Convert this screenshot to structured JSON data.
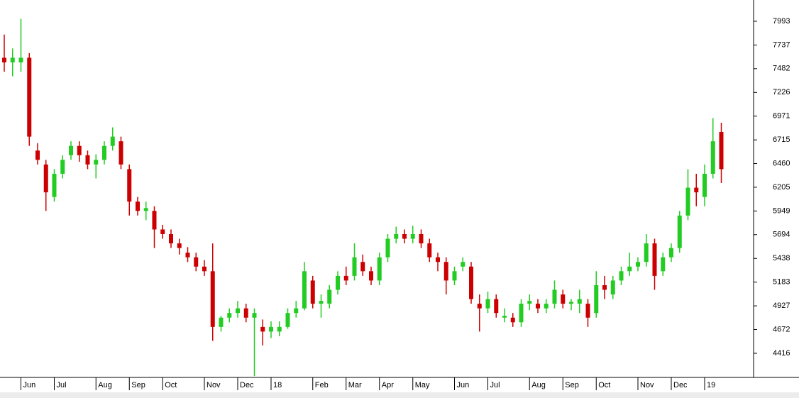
{
  "chart_data": {
    "type": "candlestick",
    "categories": [
      null,
      null,
      "Jun",
      null,
      null,
      null,
      "Jul",
      null,
      null,
      null,
      null,
      "Aug",
      null,
      null,
      null,
      "Sep",
      null,
      null,
      null,
      "Oct",
      null,
      null,
      null,
      null,
      "Nov",
      null,
      null,
      null,
      "Dec",
      null,
      null,
      null,
      "18",
      null,
      null,
      null,
      null,
      "Feb",
      null,
      null,
      null,
      "Mar",
      null,
      null,
      null,
      "Apr",
      null,
      null,
      null,
      "May",
      null,
      null,
      null,
      null,
      "Jun",
      null,
      null,
      null,
      "Jul",
      null,
      null,
      null,
      null,
      "Aug",
      null,
      null,
      null,
      "Sep",
      null,
      null,
      null,
      "Oct",
      null,
      null,
      null,
      null,
      "Nov",
      null,
      null,
      null,
      "Dec",
      null,
      null,
      null,
      "19",
      null,
      null
    ],
    "open": [
      7600,
      7550,
      7550,
      7600,
      6600,
      6450,
      6100,
      6350,
      6550,
      6650,
      6550,
      6450,
      6500,
      6650,
      6700,
      6400,
      6050,
      5950,
      5950,
      5750,
      5700,
      5600,
      5500,
      5450,
      5350,
      5300,
      4700,
      4800,
      4850,
      4900,
      4800,
      4700,
      4650,
      4650,
      4700,
      4850,
      4900,
      5200,
      4950,
      4950,
      5100,
      5250,
      5250,
      5400,
      5300,
      5200,
      5450,
      5650,
      5700,
      5650,
      5700,
      5600,
      5450,
      5400,
      5200,
      5350,
      5350,
      4950,
      4900,
      5000,
      4800,
      4800,
      4750,
      4950,
      4950,
      4900,
      4950,
      5050,
      4950,
      4950,
      4950,
      4850,
      5150,
      5050,
      5200,
      5300,
      5350,
      5400,
      5600,
      5300,
      5450,
      5550,
      5900,
      6200,
      6100,
      6350,
      6800
    ],
    "high": [
      7850,
      7700,
      8020,
      7650,
      6680,
      6500,
      6400,
      6550,
      6700,
      6700,
      6600,
      6560,
      6700,
      6850,
      6750,
      6450,
      6100,
      6050,
      6000,
      5800,
      5750,
      5650,
      5560,
      5500,
      5420,
      5600,
      4820,
      4900,
      4980,
      4950,
      4900,
      4780,
      4760,
      4760,
      4900,
      4980,
      5400,
      5250,
      5050,
      5150,
      5300,
      5350,
      5600,
      5480,
      5350,
      5500,
      5700,
      5780,
      5750,
      5790,
      5750,
      5650,
      5500,
      5450,
      5350,
      5450,
      5400,
      5050,
      5080,
      5050,
      4900,
      4850,
      5000,
      5050,
      5000,
      5000,
      5200,
      5100,
      5000,
      5100,
      5000,
      5300,
      5250,
      5250,
      5350,
      5500,
      5450,
      5700,
      5650,
      5500,
      5600,
      5950,
      6400,
      6350,
      6450,
      6950,
      6900
    ],
    "low": [
      7450,
      7400,
      7450,
      6650,
      6450,
      5950,
      6050,
      6300,
      6500,
      6480,
      6400,
      6300,
      6450,
      6600,
      6400,
      5900,
      5900,
      5850,
      5550,
      5650,
      5550,
      5480,
      5400,
      5300,
      5250,
      4550,
      4650,
      4750,
      4800,
      4750,
      4170,
      4500,
      4580,
      4600,
      4680,
      4800,
      4880,
      4900,
      4800,
      4900,
      5050,
      5150,
      5200,
      5250,
      5150,
      5150,
      5400,
      5600,
      5600,
      5600,
      5550,
      5400,
      5300,
      5050,
      5150,
      5300,
      4950,
      4650,
      4850,
      4800,
      4750,
      4700,
      4700,
      4880,
      4850,
      4850,
      4900,
      4900,
      4880,
      4850,
      4700,
      4800,
      5000,
      5000,
      5150,
      5250,
      5300,
      5350,
      5100,
      5250,
      5400,
      5500,
      5850,
      6000,
      6000,
      6300,
      6250
    ],
    "close": [
      7550,
      7600,
      7600,
      6750,
      6500,
      6150,
      6350,
      6500,
      6650,
      6550,
      6450,
      6500,
      6650,
      6750,
      6450,
      6050,
      5950,
      5980,
      5750,
      5700,
      5600,
      5550,
      5450,
      5350,
      5300,
      4700,
      4800,
      4850,
      4900,
      4800,
      4850,
      4650,
      4700,
      4700,
      4850,
      4900,
      5300,
      4950,
      4980,
      5100,
      5250,
      5200,
      5450,
      5300,
      5200,
      5450,
      5650,
      5700,
      5650,
      5700,
      5600,
      5450,
      5400,
      5200,
      5300,
      5400,
      5000,
      4900,
      5000,
      4850,
      4820,
      4750,
      4950,
      4980,
      4900,
      4950,
      5100,
      4950,
      4970,
      5000,
      4800,
      5150,
      5100,
      5200,
      5300,
      5350,
      5400,
      5600,
      5250,
      5450,
      5550,
      5900,
      6200,
      6150,
      6350,
      6700,
      6400
    ],
    "up_color": "#22cc22",
    "down_color": "#cc0000",
    "ylim": [
      4156,
      8222
    ],
    "yticks": [
      4416,
      4672,
      4927,
      5183,
      5438,
      5694,
      5949,
      6205,
      6460,
      6715,
      6971,
      7226,
      7482,
      7737,
      7993
    ]
  }
}
